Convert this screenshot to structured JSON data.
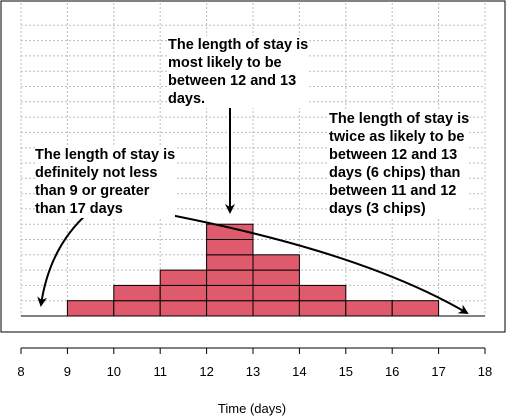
{
  "chart_data": {
    "type": "bar",
    "title": "",
    "xlabel": "Time (days)",
    "ylabel": "",
    "bins": [
      {
        "from": 9,
        "to": 10,
        "chips": 1
      },
      {
        "from": 10,
        "to": 11,
        "chips": 2
      },
      {
        "from": 11,
        "to": 12,
        "chips": 3
      },
      {
        "from": 12,
        "to": 13,
        "chips": 6
      },
      {
        "from": 13,
        "to": 14,
        "chips": 4
      },
      {
        "from": 14,
        "to": 15,
        "chips": 2
      },
      {
        "from": 15,
        "to": 16,
        "chips": 1
      },
      {
        "from": 16,
        "to": 17,
        "chips": 1
      }
    ],
    "xlim": [
      8,
      18
    ],
    "ylim": [
      0,
      13
    ],
    "xticks": [
      "8",
      "9",
      "10",
      "11",
      "12",
      "13",
      "14",
      "15",
      "16",
      "17",
      "18"
    ],
    "grid": true,
    "bar_color": "#e05a6d",
    "annotations": [
      {
        "lines": [
          "The length of stay is",
          "most likely to be",
          "between 12 and 13",
          "days."
        ]
      },
      {
        "lines": [
          "The length of stay is",
          "twice as likely to be",
          "between 12 and 13",
          "days (6 chips) than",
          "between 11 and 12",
          "days (3 chips)"
        ]
      },
      {
        "lines": [
          "The length of stay is",
          "definitely not less",
          "than 9 or greater",
          "than 17 days"
        ]
      }
    ]
  }
}
